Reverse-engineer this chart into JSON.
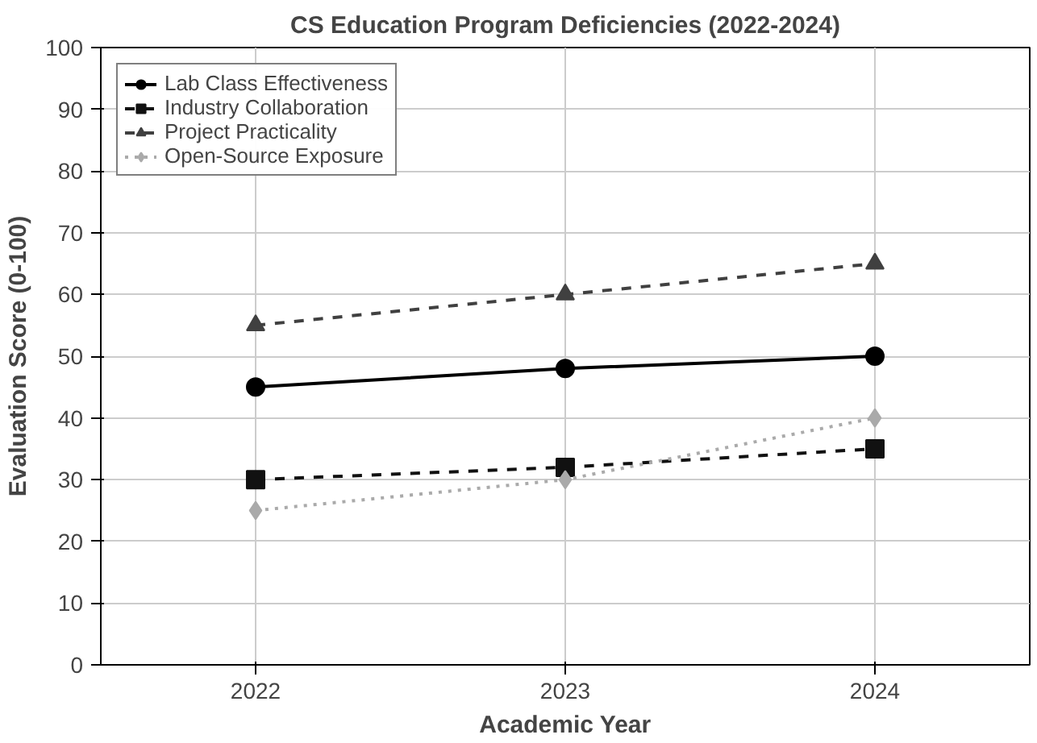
{
  "chart_data": {
    "type": "line",
    "title": "CS Education Program Deficiencies (2022-2024)",
    "xlabel": "Academic Year",
    "ylabel": "Evaluation Score (0-100)",
    "x": [
      2022,
      2023,
      2024
    ],
    "xlim": [
      2021.5,
      2024.5
    ],
    "xticks": [
      2022,
      2023,
      2024
    ],
    "ylim": [
      0,
      100
    ],
    "yticks": [
      0,
      10,
      20,
      30,
      40,
      50,
      60,
      70,
      80,
      90,
      100
    ],
    "grid": true,
    "legend": "top left",
    "series": [
      {
        "name": "Lab Class Effectiveness",
        "color": "#000000",
        "values": [
          45,
          48,
          50
        ],
        "marker": "circle",
        "line_style": "solid"
      },
      {
        "name": "Industry Collaboration",
        "color": "#111111",
        "values": [
          30,
          32,
          35
        ],
        "marker": "square",
        "line_style": "dashed"
      },
      {
        "name": "Project Practicality",
        "color": "#404040",
        "values": [
          55,
          60,
          65
        ],
        "marker": "triangle",
        "line_style": "dashed"
      },
      {
        "name": "Open-Source Exposure",
        "color": "#aaaaaa",
        "values": [
          25,
          30,
          40
        ],
        "marker": "diamond",
        "line_style": "dotted"
      }
    ]
  }
}
